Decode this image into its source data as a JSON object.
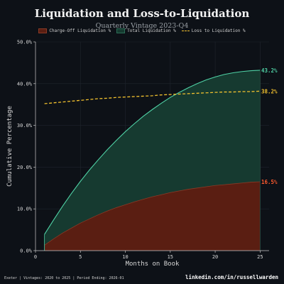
{
  "chart_data": {
    "type": "area",
    "title": "Liquidation and Loss-to-Liquidation",
    "subtitle": "Quarterly Vintage 2023-Q4",
    "xlabel": "Months on Book",
    "ylabel": "Cumulative Percentage",
    "xlim": [
      0,
      26
    ],
    "ylim": [
      0,
      50
    ],
    "x_ticks": [
      0,
      5,
      10,
      15,
      20,
      25
    ],
    "x_tick_labels": [
      "0",
      "5",
      "10",
      "15",
      "20",
      "25"
    ],
    "y_ticks": [
      0,
      10,
      20,
      30,
      40,
      50
    ],
    "y_tick_labels": [
      "0.0%",
      "10.0%",
      "20.0%",
      "30.0%",
      "40.0%",
      "50.0%"
    ],
    "grid": true,
    "legend_position": "top-center",
    "x": [
      1,
      2,
      3,
      4,
      5,
      6,
      7,
      8,
      9,
      10,
      11,
      12,
      13,
      14,
      15,
      16,
      17,
      18,
      19,
      20,
      21,
      22,
      23,
      24,
      25
    ],
    "series": [
      {
        "name": "Charge-Off Liquidation %",
        "style": "area",
        "color": "#5a1e12",
        "edge_color": "#8a3a26",
        "values": [
          1.3,
          2.8,
          4.2,
          5.4,
          6.6,
          7.6,
          8.6,
          9.5,
          10.3,
          11.0,
          11.7,
          12.3,
          12.9,
          13.4,
          13.9,
          14.3,
          14.7,
          15.0,
          15.3,
          15.6,
          15.8,
          16.0,
          16.2,
          16.4,
          16.5
        ]
      },
      {
        "name": "Total Liquidation %",
        "style": "area",
        "color": "#163a30",
        "edge_color": "#4fd1a5",
        "values": [
          3.9,
          7.3,
          10.6,
          13.7,
          16.6,
          19.3,
          21.8,
          24.2,
          26.4,
          28.5,
          30.4,
          32.2,
          33.8,
          35.3,
          36.7,
          37.9,
          39.0,
          40.0,
          40.9,
          41.6,
          42.2,
          42.6,
          42.9,
          43.1,
          43.2
        ]
      },
      {
        "name": "Loss to Liquidation %",
        "style": "dashed-line",
        "color": "#f2c12e",
        "values": [
          35.2,
          35.4,
          35.6,
          35.8,
          36.0,
          36.2,
          36.4,
          36.5,
          36.7,
          36.8,
          36.9,
          37.0,
          37.1,
          37.3,
          37.4,
          37.5,
          37.6,
          37.7,
          37.8,
          37.9,
          38.0,
          38.0,
          38.1,
          38.1,
          38.2
        ]
      }
    ],
    "end_labels": [
      {
        "text": "43.2%",
        "value": 43.2,
        "color": "#4fd1a5"
      },
      {
        "text": "38.2%",
        "value": 38.2,
        "color": "#f2c12e"
      },
      {
        "text": "16.5%",
        "value": 16.5,
        "color": "#ff5a2e"
      }
    ]
  },
  "footer": {
    "left": "Exeter | Vintages: 2020 to 2025 | Period Ending: 2026-01",
    "right": "linkedin.com/in/russellwarden"
  }
}
